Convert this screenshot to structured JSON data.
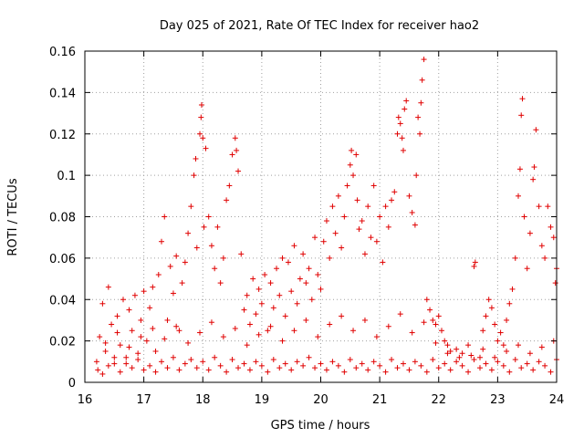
{
  "chart_data": {
    "type": "scatter",
    "title": "Day 025 of 2021, Rate Of TEC Index for receiver hao2",
    "xlabel": "GPS time / hours",
    "ylabel": "ROTI / TECUs",
    "xlim": [
      16,
      24
    ],
    "ylim": [
      0,
      0.16
    ],
    "x_ticks": [
      "16",
      "17",
      "18",
      "19",
      "20",
      "21",
      "22",
      "23",
      "24"
    ],
    "y_ticks": [
      "0",
      "0.02",
      "0.04",
      "0.06",
      "0.08",
      "0.1",
      "0.12",
      "0.14",
      "0.16"
    ],
    "grid": true,
    "marker": "+",
    "color": "#e00000",
    "series": [
      {
        "points": [
          [
            16.2,
            0.01
          ],
          [
            16.25,
            0.022
          ],
          [
            16.3,
            0.038
          ],
          [
            16.35,
            0.015
          ],
          [
            16.4,
            0.046
          ],
          [
            16.45,
            0.028
          ],
          [
            16.5,
            0.009
          ],
          [
            16.55,
            0.032
          ],
          [
            16.6,
            0.018
          ],
          [
            16.65,
            0.04
          ],
          [
            16.7,
            0.012
          ],
          [
            16.75,
            0.035
          ],
          [
            16.8,
            0.025
          ],
          [
            16.85,
            0.042
          ],
          [
            16.9,
            0.014
          ],
          [
            16.95,
            0.03
          ],
          [
            17.0,
            0.044
          ],
          [
            17.05,
            0.02
          ],
          [
            17.1,
            0.036
          ],
          [
            17.15,
            0.046
          ],
          [
            17.2,
            0.015
          ],
          [
            17.25,
            0.052
          ],
          [
            17.3,
            0.068
          ],
          [
            17.35,
            0.08
          ],
          [
            17.4,
            0.03
          ],
          [
            17.45,
            0.056
          ],
          [
            17.5,
            0.043
          ],
          [
            17.55,
            0.061
          ],
          [
            17.6,
            0.025
          ],
          [
            17.65,
            0.048
          ],
          [
            17.7,
            0.058
          ],
          [
            17.75,
            0.072
          ],
          [
            17.8,
            0.085
          ],
          [
            17.85,
            0.1
          ],
          [
            17.88,
            0.108
          ],
          [
            17.9,
            0.065
          ],
          [
            17.95,
            0.12
          ],
          [
            17.97,
            0.128
          ],
          [
            17.98,
            0.134
          ],
          [
            18.0,
            0.118
          ],
          [
            18.02,
            0.075
          ],
          [
            18.05,
            0.113
          ],
          [
            18.1,
            0.08
          ],
          [
            18.15,
            0.066
          ],
          [
            18.2,
            0.055
          ],
          [
            18.25,
            0.075
          ],
          [
            18.3,
            0.048
          ],
          [
            18.35,
            0.06
          ],
          [
            18.4,
            0.088
          ],
          [
            18.45,
            0.095
          ],
          [
            18.5,
            0.11
          ],
          [
            18.55,
            0.118
          ],
          [
            18.57,
            0.112
          ],
          [
            18.6,
            0.102
          ],
          [
            18.65,
            0.062
          ],
          [
            18.7,
            0.035
          ],
          [
            18.75,
            0.042
          ],
          [
            18.8,
            0.028
          ],
          [
            18.85,
            0.05
          ],
          [
            18.9,
            0.033
          ],
          [
            18.95,
            0.045
          ],
          [
            19.0,
            0.038
          ],
          [
            19.05,
            0.052
          ],
          [
            19.1,
            0.025
          ],
          [
            19.15,
            0.048
          ],
          [
            19.2,
            0.036
          ],
          [
            19.25,
            0.055
          ],
          [
            19.3,
            0.042
          ],
          [
            19.35,
            0.06
          ],
          [
            19.4,
            0.032
          ],
          [
            19.45,
            0.058
          ],
          [
            19.5,
            0.044
          ],
          [
            19.55,
            0.066
          ],
          [
            19.6,
            0.038
          ],
          [
            19.65,
            0.05
          ],
          [
            19.7,
            0.062
          ],
          [
            19.75,
            0.048
          ],
          [
            19.8,
            0.055
          ],
          [
            19.85,
            0.04
          ],
          [
            19.9,
            0.07
          ],
          [
            19.95,
            0.052
          ],
          [
            20.0,
            0.045
          ],
          [
            20.05,
            0.068
          ],
          [
            20.1,
            0.078
          ],
          [
            20.15,
            0.06
          ],
          [
            20.2,
            0.085
          ],
          [
            20.25,
            0.072
          ],
          [
            20.3,
            0.09
          ],
          [
            20.35,
            0.065
          ],
          [
            20.4,
            0.08
          ],
          [
            20.45,
            0.095
          ],
          [
            20.5,
            0.105
          ],
          [
            20.52,
            0.112
          ],
          [
            20.55,
            0.1
          ],
          [
            20.6,
            0.11
          ],
          [
            20.62,
            0.088
          ],
          [
            20.65,
            0.074
          ],
          [
            20.7,
            0.078
          ],
          [
            20.75,
            0.062
          ],
          [
            20.8,
            0.085
          ],
          [
            20.85,
            0.07
          ],
          [
            20.9,
            0.095
          ],
          [
            20.95,
            0.068
          ],
          [
            21.0,
            0.08
          ],
          [
            21.05,
            0.058
          ],
          [
            21.1,
            0.085
          ],
          [
            21.15,
            0.075
          ],
          [
            21.2,
            0.088
          ],
          [
            21.25,
            0.092
          ],
          [
            21.3,
            0.12
          ],
          [
            21.32,
            0.128
          ],
          [
            21.35,
            0.125
          ],
          [
            21.38,
            0.118
          ],
          [
            21.4,
            0.112
          ],
          [
            21.42,
            0.132
          ],
          [
            21.45,
            0.136
          ],
          [
            21.5,
            0.09
          ],
          [
            21.55,
            0.082
          ],
          [
            21.6,
            0.076
          ],
          [
            21.62,
            0.1
          ],
          [
            21.65,
            0.128
          ],
          [
            21.68,
            0.12
          ],
          [
            21.7,
            0.135
          ],
          [
            21.72,
            0.146
          ],
          [
            21.75,
            0.156
          ],
          [
            21.8,
            0.04
          ],
          [
            21.85,
            0.035
          ],
          [
            21.9,
            0.03
          ],
          [
            21.95,
            0.028
          ],
          [
            22.0,
            0.032
          ],
          [
            22.05,
            0.025
          ],
          [
            22.1,
            0.02
          ],
          [
            22.15,
            0.018
          ],
          [
            22.2,
            0.015
          ],
          [
            22.3,
            0.016
          ],
          [
            22.4,
            0.014
          ],
          [
            22.5,
            0.018
          ],
          [
            22.6,
            0.056
          ],
          [
            22.62,
            0.058
          ],
          [
            22.7,
            0.012
          ],
          [
            22.75,
            0.025
          ],
          [
            22.8,
            0.032
          ],
          [
            22.85,
            0.04
          ],
          [
            22.9,
            0.036
          ],
          [
            22.95,
            0.028
          ],
          [
            23.0,
            0.02
          ],
          [
            23.05,
            0.024
          ],
          [
            23.1,
            0.018
          ],
          [
            23.15,
            0.03
          ],
          [
            23.2,
            0.038
          ],
          [
            23.25,
            0.045
          ],
          [
            23.3,
            0.06
          ],
          [
            23.35,
            0.09
          ],
          [
            23.38,
            0.103
          ],
          [
            23.4,
            0.129
          ],
          [
            23.42,
            0.137
          ],
          [
            23.45,
            0.08
          ],
          [
            23.5,
            0.055
          ],
          [
            23.55,
            0.072
          ],
          [
            23.6,
            0.098
          ],
          [
            23.62,
            0.104
          ],
          [
            23.65,
            0.122
          ],
          [
            23.7,
            0.085
          ],
          [
            23.75,
            0.066
          ],
          [
            23.8,
            0.06
          ],
          [
            23.85,
            0.085
          ],
          [
            23.9,
            0.075
          ],
          [
            23.95,
            0.07
          ],
          [
            23.98,
            0.048
          ],
          [
            24.0,
            0.055
          ],
          [
            16.22,
            0.006
          ],
          [
            16.3,
            0.004
          ],
          [
            16.4,
            0.008
          ],
          [
            16.5,
            0.012
          ],
          [
            16.6,
            0.005
          ],
          [
            16.7,
            0.009
          ],
          [
            16.8,
            0.007
          ],
          [
            16.9,
            0.011
          ],
          [
            17.0,
            0.006
          ],
          [
            17.1,
            0.008
          ],
          [
            17.2,
            0.005
          ],
          [
            17.3,
            0.01
          ],
          [
            17.4,
            0.007
          ],
          [
            17.5,
            0.012
          ],
          [
            17.6,
            0.006
          ],
          [
            17.7,
            0.009
          ],
          [
            17.8,
            0.011
          ],
          [
            17.9,
            0.007
          ],
          [
            18.0,
            0.01
          ],
          [
            18.1,
            0.006
          ],
          [
            18.2,
            0.012
          ],
          [
            18.3,
            0.008
          ],
          [
            18.4,
            0.005
          ],
          [
            18.5,
            0.011
          ],
          [
            18.6,
            0.007
          ],
          [
            18.7,
            0.009
          ],
          [
            18.8,
            0.006
          ],
          [
            18.9,
            0.01
          ],
          [
            19.0,
            0.008
          ],
          [
            19.1,
            0.005
          ],
          [
            19.2,
            0.011
          ],
          [
            19.3,
            0.007
          ],
          [
            19.4,
            0.009
          ],
          [
            19.5,
            0.006
          ],
          [
            19.6,
            0.01
          ],
          [
            19.7,
            0.008
          ],
          [
            19.8,
            0.012
          ],
          [
            19.9,
            0.007
          ],
          [
            20.0,
            0.009
          ],
          [
            20.1,
            0.006
          ],
          [
            20.2,
            0.01
          ],
          [
            20.3,
            0.008
          ],
          [
            20.4,
            0.005
          ],
          [
            20.5,
            0.011
          ],
          [
            20.6,
            0.007
          ],
          [
            20.7,
            0.009
          ],
          [
            20.8,
            0.006
          ],
          [
            20.9,
            0.01
          ],
          [
            21.0,
            0.008
          ],
          [
            21.1,
            0.005
          ],
          [
            21.2,
            0.011
          ],
          [
            21.3,
            0.007
          ],
          [
            21.4,
            0.009
          ],
          [
            21.5,
            0.006
          ],
          [
            21.6,
            0.01
          ],
          [
            21.7,
            0.008
          ],
          [
            21.8,
            0.005
          ],
          [
            21.9,
            0.011
          ],
          [
            22.0,
            0.007
          ],
          [
            22.1,
            0.009
          ],
          [
            22.2,
            0.006
          ],
          [
            22.3,
            0.01
          ],
          [
            22.4,
            0.008
          ],
          [
            22.5,
            0.005
          ],
          [
            22.6,
            0.011
          ],
          [
            22.7,
            0.007
          ],
          [
            22.8,
            0.009
          ],
          [
            22.9,
            0.006
          ],
          [
            23.0,
            0.01
          ],
          [
            23.1,
            0.008
          ],
          [
            23.2,
            0.005
          ],
          [
            23.3,
            0.011
          ],
          [
            23.4,
            0.007
          ],
          [
            23.5,
            0.009
          ],
          [
            23.6,
            0.006
          ],
          [
            23.7,
            0.01
          ],
          [
            23.8,
            0.008
          ],
          [
            23.9,
            0.005
          ],
          [
            24.0,
            0.011
          ],
          [
            16.35,
            0.019
          ],
          [
            16.55,
            0.024
          ],
          [
            16.75,
            0.017
          ],
          [
            16.95,
            0.022
          ],
          [
            17.15,
            0.026
          ],
          [
            17.35,
            0.021
          ],
          [
            17.55,
            0.027
          ],
          [
            17.75,
            0.019
          ],
          [
            17.95,
            0.024
          ],
          [
            18.15,
            0.029
          ],
          [
            18.35,
            0.022
          ],
          [
            18.55,
            0.026
          ],
          [
            18.75,
            0.018
          ],
          [
            18.95,
            0.023
          ],
          [
            19.15,
            0.027
          ],
          [
            19.35,
            0.02
          ],
          [
            19.55,
            0.025
          ],
          [
            19.75,
            0.03
          ],
          [
            19.95,
            0.022
          ],
          [
            20.15,
            0.028
          ],
          [
            20.35,
            0.032
          ],
          [
            20.55,
            0.025
          ],
          [
            20.75,
            0.03
          ],
          [
            20.95,
            0.022
          ],
          [
            21.15,
            0.027
          ],
          [
            21.35,
            0.033
          ],
          [
            21.55,
            0.024
          ],
          [
            21.75,
            0.029
          ],
          [
            21.95,
            0.019
          ],
          [
            22.15,
            0.014
          ],
          [
            22.35,
            0.012
          ],
          [
            22.55,
            0.013
          ],
          [
            22.75,
            0.016
          ],
          [
            22.95,
            0.012
          ],
          [
            23.15,
            0.015
          ],
          [
            23.35,
            0.018
          ],
          [
            23.55,
            0.014
          ],
          [
            23.75,
            0.017
          ],
          [
            23.95,
            0.02
          ]
        ]
      }
    ]
  }
}
